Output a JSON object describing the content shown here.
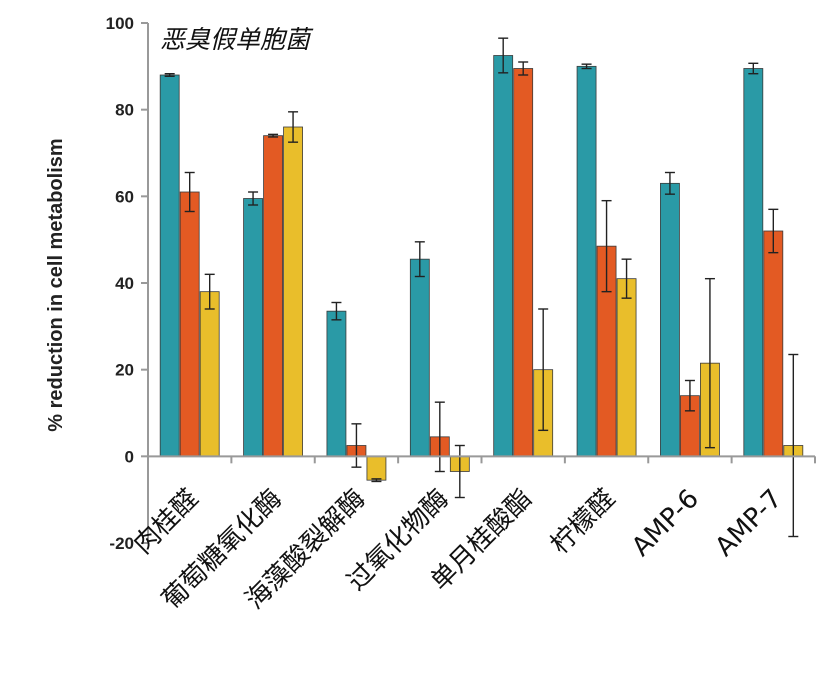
{
  "chart_data": {
    "type": "bar",
    "title": "恶臭假单胞菌",
    "ylabel": "% reduction in cell metabolism",
    "xlabel": "",
    "ylim": [
      -20,
      100
    ],
    "yticks": [
      -20,
      0,
      20,
      40,
      60,
      80,
      100
    ],
    "grid": false,
    "categories": [
      "肉桂醛",
      "葡萄糖氧化酶",
      "海藻酸裂解酶",
      "过氧化物酶",
      "单月桂酸酯",
      "柠檬醛",
      "AMP-6",
      "AMP-7"
    ],
    "series": [
      {
        "color": "#2a9aa6",
        "values": [
          88,
          59.5,
          33.5,
          45.5,
          92.5,
          90,
          63,
          89.5
        ],
        "errors": [
          0.3,
          1.5,
          2,
          4,
          4,
          0.5,
          2.5,
          1.2
        ]
      },
      {
        "color": "#e35a23",
        "values": [
          61,
          74,
          2.5,
          4.5,
          89.5,
          48.5,
          14,
          52
        ],
        "errors": [
          4.5,
          0.3,
          5,
          8,
          1.5,
          10.5,
          3.5,
          5
        ]
      },
      {
        "color": "#e9be2b",
        "values": [
          38,
          76,
          -5.5,
          -3.5,
          20,
          41,
          21.5,
          2.5
        ],
        "errors": [
          4,
          3.5,
          0.3,
          6,
          14,
          4.5,
          19.5,
          21
        ]
      }
    ]
  }
}
